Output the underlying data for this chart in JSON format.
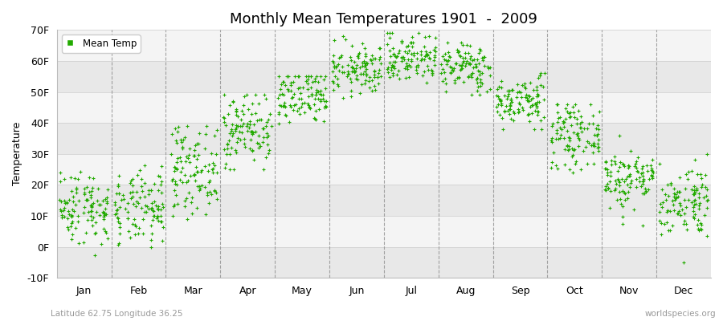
{
  "title": "Monthly Mean Temperatures 1901  -  2009",
  "ylabel": "Temperature",
  "subtitle_left": "Latitude 62.75 Longitude 36.25",
  "subtitle_right": "worldspecies.org",
  "dot_color": "#22aa00",
  "bg_color": "#ffffff",
  "plot_bg_color": "#ffffff",
  "band_color_even": "#e8e8e8",
  "band_color_odd": "#f4f4f4",
  "ylim": [
    -10,
    70
  ],
  "yticks": [
    -10,
    0,
    10,
    20,
    30,
    40,
    50,
    60,
    70
  ],
  "ytick_labels": [
    "-10F",
    "0F",
    "10F",
    "20F",
    "30F",
    "40F",
    "50F",
    "60F",
    "70F"
  ],
  "months": [
    "Jan",
    "Feb",
    "Mar",
    "Apr",
    "May",
    "Jun",
    "Jul",
    "Aug",
    "Sep",
    "Oct",
    "Nov",
    "Dec"
  ],
  "month_means_F": [
    13,
    12,
    25,
    38,
    48,
    57,
    61,
    58,
    47,
    36,
    22,
    15
  ],
  "month_stds_F": [
    6,
    6,
    7,
    6,
    5,
    4,
    4,
    4,
    4,
    5,
    5,
    6
  ],
  "month_mins_F": [
    -8,
    -9,
    6,
    25,
    36,
    48,
    50,
    49,
    38,
    24,
    0,
    -5
  ],
  "month_maxs_F": [
    26,
    30,
    39,
    49,
    55,
    68,
    69,
    66,
    56,
    46,
    42,
    30
  ],
  "n_years": 109,
  "legend_label": "Mean Temp",
  "dot_size": 6,
  "marker": "+"
}
